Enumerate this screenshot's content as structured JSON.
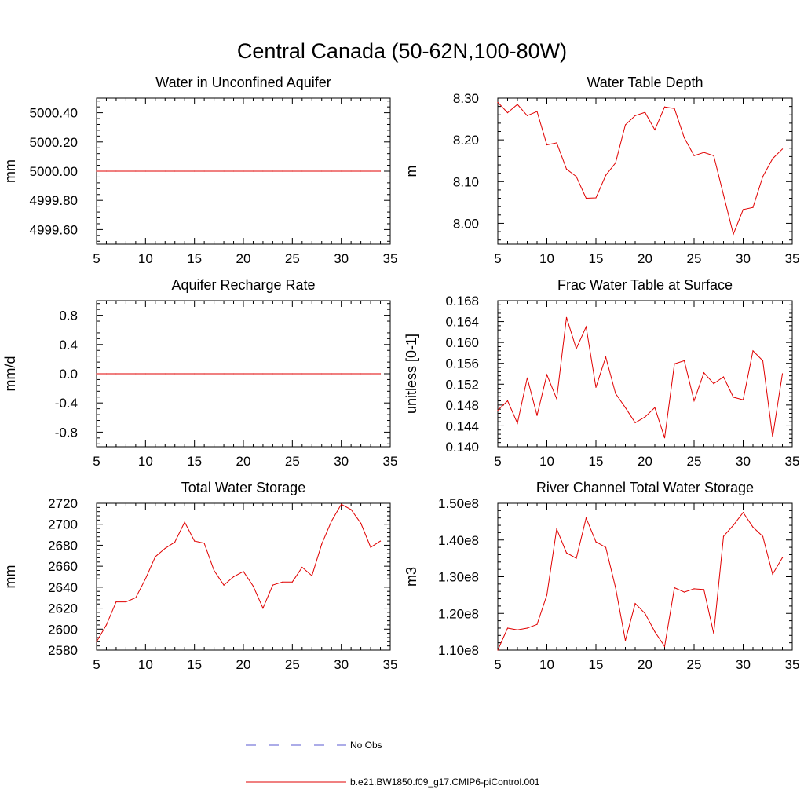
{
  "figure": {
    "title": "Central Canada (50-62N,100-80W)"
  },
  "legend": {
    "entries": [
      {
        "label": "No Obs",
        "color": "#5a5ad0",
        "dash": "dashed"
      },
      {
        "label": "b.e21.BW1850.f09_g17.CMIP6-piControl.001",
        "color": "#e00000",
        "dash": "solid"
      }
    ],
    "placement": "bottom-center"
  },
  "chart_data": [
    {
      "type": "line",
      "title": "Water in Unconfined Aquifer",
      "xlabel": "",
      "ylabel": "mm",
      "xlim": [
        5,
        35
      ],
      "ylim": [
        4999.5,
        5000.5
      ],
      "xticks": [
        5,
        10,
        15,
        20,
        25,
        30,
        35
      ],
      "yticks": [
        4999.6,
        4999.8,
        5000.0,
        5000.2,
        5000.4
      ],
      "ytick_labels": [
        "4999.60",
        "4999.80",
        "5000.00",
        "5000.20",
        "5000.40"
      ],
      "series": [
        {
          "color": "#e00000",
          "x": [
            5,
            6,
            7,
            8,
            9,
            10,
            11,
            12,
            13,
            14,
            15,
            16,
            17,
            18,
            19,
            20,
            21,
            22,
            23,
            24,
            25,
            26,
            27,
            28,
            29,
            30,
            31,
            32,
            33,
            34
          ],
          "y": [
            5000,
            5000,
            5000,
            5000,
            5000,
            5000,
            5000,
            5000,
            5000,
            5000,
            5000,
            5000,
            5000,
            5000,
            5000,
            5000,
            5000,
            5000,
            5000,
            5000,
            5000,
            5000,
            5000,
            5000,
            5000,
            5000,
            5000,
            5000,
            5000,
            5000
          ]
        }
      ]
    },
    {
      "type": "line",
      "title": "Water Table Depth",
      "xlabel": "",
      "ylabel": "m",
      "xlim": [
        5,
        35
      ],
      "ylim": [
        7.95,
        8.3
      ],
      "xticks": [
        5,
        10,
        15,
        20,
        25,
        30,
        35
      ],
      "yticks": [
        8.0,
        8.1,
        8.2,
        8.3
      ],
      "ytick_labels": [
        "8.00",
        "8.10",
        "8.20",
        "8.30"
      ],
      "series": [
        {
          "color": "#e00000",
          "x": [
            5,
            6,
            7,
            8,
            9,
            10,
            11,
            12,
            13,
            14,
            15,
            16,
            17,
            18,
            19,
            20,
            21,
            22,
            23,
            24,
            25,
            26,
            27,
            28,
            29,
            30,
            31,
            32,
            33,
            34
          ],
          "y": [
            8.29,
            8.265,
            8.285,
            8.258,
            8.268,
            8.188,
            8.193,
            8.13,
            8.112,
            8.06,
            8.061,
            8.115,
            8.145,
            8.236,
            8.258,
            8.266,
            8.224,
            8.279,
            8.275,
            8.205,
            8.162,
            8.17,
            8.162,
            8.068,
            7.974,
            8.033,
            8.038,
            8.112,
            8.155,
            8.178
          ]
        }
      ]
    },
    {
      "type": "line",
      "title": "Aquifer Recharge Rate",
      "xlabel": "",
      "ylabel": "mm/d",
      "xlim": [
        5,
        35
      ],
      "ylim": [
        -1.0,
        1.0
      ],
      "xticks": [
        5,
        10,
        15,
        20,
        25,
        30,
        35
      ],
      "yticks": [
        -0.8,
        -0.4,
        0.0,
        0.4,
        0.8
      ],
      "ytick_labels": [
        "-0.8",
        "-0.4",
        "0.0",
        "0.4",
        "0.8"
      ],
      "series": [
        {
          "color": "#e00000",
          "x": [
            5,
            6,
            7,
            8,
            9,
            10,
            11,
            12,
            13,
            14,
            15,
            16,
            17,
            18,
            19,
            20,
            21,
            22,
            23,
            24,
            25,
            26,
            27,
            28,
            29,
            30,
            31,
            32,
            33,
            34
          ],
          "y": [
            0,
            0,
            0,
            0,
            0,
            0,
            0,
            0,
            0,
            0,
            0,
            0,
            0,
            0,
            0,
            0,
            0,
            0,
            0,
            0,
            0,
            0,
            0,
            0,
            0,
            0,
            0,
            0,
            0,
            0
          ]
        }
      ]
    },
    {
      "type": "line",
      "title": "Frac Water Table at Surface",
      "xlabel": "",
      "ylabel": "unitless [0-1]",
      "xlim": [
        5,
        35
      ],
      "ylim": [
        0.14,
        0.168
      ],
      "xticks": [
        5,
        10,
        15,
        20,
        25,
        30,
        35
      ],
      "yticks": [
        0.14,
        0.144,
        0.148,
        0.152,
        0.156,
        0.16,
        0.164,
        0.168
      ],
      "ytick_labels": [
        "0.140",
        "0.144",
        "0.148",
        "0.152",
        "0.156",
        "0.160",
        "0.164",
        "0.168"
      ],
      "series": [
        {
          "color": "#e00000",
          "x": [
            5,
            6,
            7,
            8,
            9,
            10,
            11,
            12,
            13,
            14,
            15,
            16,
            17,
            18,
            19,
            20,
            21,
            22,
            23,
            24,
            25,
            26,
            27,
            28,
            29,
            30,
            31,
            32,
            33,
            34
          ],
          "y": [
            0.147,
            0.1488,
            0.1445,
            0.1532,
            0.146,
            0.1538,
            0.1492,
            0.1648,
            0.1588,
            0.163,
            0.1514,
            0.1572,
            0.1502,
            0.1475,
            0.1446,
            0.1457,
            0.1475,
            0.1417,
            0.1559,
            0.1565,
            0.1488,
            0.1542,
            0.1521,
            0.1534,
            0.1495,
            0.149,
            0.1584,
            0.1565,
            0.1419,
            0.154
          ]
        }
      ]
    },
    {
      "type": "line",
      "title": "Total Water Storage",
      "xlabel": "",
      "ylabel": "mm",
      "xlim": [
        5,
        35
      ],
      "ylim": [
        2580,
        2720
      ],
      "xticks": [
        5,
        10,
        15,
        20,
        25,
        30,
        35
      ],
      "yticks": [
        2580,
        2600,
        2620,
        2640,
        2660,
        2680,
        2700,
        2720
      ],
      "ytick_labels": [
        "2580",
        "2600",
        "2620",
        "2640",
        "2660",
        "2680",
        "2700",
        "2720"
      ],
      "series": [
        {
          "color": "#e00000",
          "x": [
            5,
            6,
            7,
            8,
            9,
            10,
            11,
            12,
            13,
            14,
            15,
            16,
            17,
            18,
            19,
            20,
            21,
            22,
            23,
            24,
            25,
            26,
            27,
            28,
            29,
            30,
            31,
            32,
            33,
            34
          ],
          "y": [
            2588,
            2604,
            2626,
            2626,
            2630,
            2648,
            2669,
            2677,
            2683,
            2702,
            2684,
            2682,
            2656,
            2642,
            2650,
            2655,
            2641,
            2620,
            2642,
            2645,
            2645,
            2659,
            2651,
            2681,
            2703,
            2719,
            2714,
            2701,
            2678,
            2684
          ]
        }
      ]
    },
    {
      "type": "line",
      "title": "River Channel Total Water Storage",
      "xlabel": "",
      "ylabel": "m3",
      "xlim": [
        5,
        35
      ],
      "ylim": [
        110000000.0,
        150000000.0
      ],
      "xticks": [
        5,
        10,
        15,
        20,
        25,
        30,
        35
      ],
      "yticks": [
        110000000.0,
        120000000.0,
        130000000.0,
        140000000.0,
        150000000.0
      ],
      "ytick_labels": [
        "1.10e8",
        "1.20e8",
        "1.30e8",
        "1.40e8",
        "1.50e8"
      ],
      "series": [
        {
          "color": "#e00000",
          "x": [
            5,
            6,
            7,
            8,
            9,
            10,
            11,
            12,
            13,
            14,
            15,
            16,
            17,
            18,
            19,
            20,
            21,
            22,
            23,
            24,
            25,
            26,
            27,
            28,
            29,
            30,
            31,
            32,
            33,
            34
          ],
          "y": [
            110000000,
            116000000,
            115500000,
            116000000,
            117000000,
            125000000,
            143000000,
            136500000,
            135000000,
            146000000,
            139500000,
            138000000,
            127000000,
            112600000,
            122700000,
            120000000,
            115000000,
            111000000,
            127000000,
            125800000,
            126700000,
            126500000,
            114500000,
            141000000,
            144000000,
            147500000,
            143500000,
            141000000,
            130700000,
            135200000
          ]
        }
      ]
    }
  ]
}
